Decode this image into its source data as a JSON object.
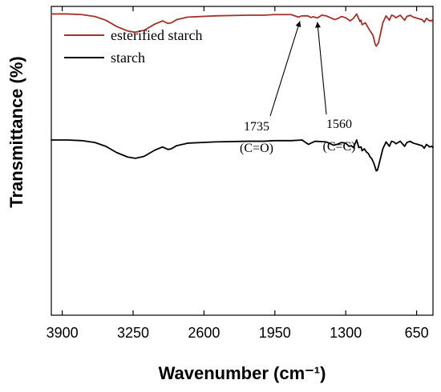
{
  "chart_data": {
    "type": "line",
    "xlabel": "Wavenumber (cm⁻¹)",
    "ylabel": "Transmittance (%)",
    "xlim": [
      4000,
      500
    ],
    "x_reversed": true,
    "xticks": [
      3900,
      3250,
      2600,
      1950,
      1300,
      650
    ],
    "xtick_labels": [
      "3900",
      "3250",
      "2600",
      "1950",
      "1300",
      "650"
    ],
    "y_ticks_shown": false,
    "grid": false,
    "legend_position": "top-left",
    "series": [
      {
        "name": "esterified starch",
        "color": "#a0322a",
        "offset": 1.0,
        "points": [
          [
            4000,
            0.79
          ],
          [
            3850,
            0.79
          ],
          [
            3720,
            0.785
          ],
          [
            3600,
            0.77
          ],
          [
            3500,
            0.74
          ],
          [
            3400,
            0.69
          ],
          [
            3300,
            0.655
          ],
          [
            3230,
            0.645
          ],
          [
            3150,
            0.66
          ],
          [
            3050,
            0.71
          ],
          [
            2980,
            0.735
          ],
          [
            2930,
            0.715
          ],
          [
            2900,
            0.72
          ],
          [
            2850,
            0.745
          ],
          [
            2750,
            0.765
          ],
          [
            2500,
            0.775
          ],
          [
            2200,
            0.78
          ],
          [
            2050,
            0.78
          ],
          [
            1960,
            0.785
          ],
          [
            1800,
            0.785
          ],
          [
            1750,
            0.77
          ],
          [
            1735,
            0.765
          ],
          [
            1700,
            0.775
          ],
          [
            1650,
            0.775
          ],
          [
            1620,
            0.762
          ],
          [
            1600,
            0.768
          ],
          [
            1560,
            0.758
          ],
          [
            1520,
            0.78
          ],
          [
            1480,
            0.775
          ],
          [
            1440,
            0.76
          ],
          [
            1400,
            0.745
          ],
          [
            1370,
            0.755
          ],
          [
            1340,
            0.77
          ],
          [
            1300,
            0.76
          ],
          [
            1260,
            0.735
          ],
          [
            1230,
            0.755
          ],
          [
            1200,
            0.79
          ],
          [
            1170,
            0.73
          ],
          [
            1160,
            0.74
          ],
          [
            1150,
            0.705
          ],
          [
            1120,
            0.72
          ],
          [
            1100,
            0.69
          ],
          [
            1080,
            0.66
          ],
          [
            1050,
            0.62
          ],
          [
            1030,
            0.55
          ],
          [
            1020,
            0.535
          ],
          [
            1000,
            0.56
          ],
          [
            980,
            0.64
          ],
          [
            960,
            0.72
          ],
          [
            930,
            0.775
          ],
          [
            900,
            0.74
          ],
          [
            880,
            0.78
          ],
          [
            860,
            0.775
          ],
          [
            840,
            0.76
          ],
          [
            800,
            0.78
          ],
          [
            760,
            0.74
          ],
          [
            740,
            0.77
          ],
          [
            710,
            0.78
          ],
          [
            680,
            0.765
          ],
          [
            640,
            0.755
          ],
          [
            600,
            0.745
          ],
          [
            580,
            0.725
          ],
          [
            560,
            0.755
          ],
          [
            530,
            0.735
          ],
          [
            510,
            0.74
          ],
          [
            500,
            0.72
          ]
        ]
      },
      {
        "name": "starch",
        "color": "#000000",
        "offset": 0.0,
        "points": [
          [
            4000,
            0.79
          ],
          [
            3850,
            0.79
          ],
          [
            3720,
            0.785
          ],
          [
            3600,
            0.77
          ],
          [
            3500,
            0.74
          ],
          [
            3400,
            0.69
          ],
          [
            3300,
            0.655
          ],
          [
            3230,
            0.645
          ],
          [
            3150,
            0.66
          ],
          [
            3050,
            0.71
          ],
          [
            2980,
            0.735
          ],
          [
            2930,
            0.715
          ],
          [
            2900,
            0.72
          ],
          [
            2850,
            0.745
          ],
          [
            2750,
            0.765
          ],
          [
            2500,
            0.775
          ],
          [
            2200,
            0.78
          ],
          [
            2050,
            0.78
          ],
          [
            1960,
            0.785
          ],
          [
            1800,
            0.785
          ],
          [
            1700,
            0.79
          ],
          [
            1660,
            0.765
          ],
          [
            1640,
            0.755
          ],
          [
            1620,
            0.765
          ],
          [
            1580,
            0.78
          ],
          [
            1480,
            0.775
          ],
          [
            1440,
            0.76
          ],
          [
            1410,
            0.748
          ],
          [
            1370,
            0.758
          ],
          [
            1340,
            0.77
          ],
          [
            1300,
            0.765
          ],
          [
            1270,
            0.74
          ],
          [
            1250,
            0.745
          ],
          [
            1230,
            0.73
          ],
          [
            1200,
            0.79
          ],
          [
            1180,
            0.73
          ],
          [
            1160,
            0.735
          ],
          [
            1150,
            0.705
          ],
          [
            1130,
            0.72
          ],
          [
            1110,
            0.695
          ],
          [
            1090,
            0.68
          ],
          [
            1080,
            0.66
          ],
          [
            1060,
            0.64
          ],
          [
            1040,
            0.6
          ],
          [
            1020,
            0.545
          ],
          [
            1010,
            0.55
          ],
          [
            1000,
            0.58
          ],
          [
            980,
            0.65
          ],
          [
            960,
            0.72
          ],
          [
            930,
            0.775
          ],
          [
            900,
            0.74
          ],
          [
            880,
            0.78
          ],
          [
            860,
            0.775
          ],
          [
            840,
            0.76
          ],
          [
            800,
            0.78
          ],
          [
            760,
            0.74
          ],
          [
            740,
            0.77
          ],
          [
            710,
            0.78
          ],
          [
            680,
            0.765
          ],
          [
            640,
            0.755
          ],
          [
            600,
            0.745
          ],
          [
            580,
            0.725
          ],
          [
            560,
            0.755
          ],
          [
            530,
            0.735
          ],
          [
            510,
            0.74
          ],
          [
            500,
            0.73
          ]
        ]
      }
    ],
    "annotations": [
      {
        "line1": "1735",
        "line2": "(C=O)",
        "x": 1735
      },
      {
        "line1": "1560",
        "line2": "(C=C)",
        "x": 1560
      }
    ]
  }
}
